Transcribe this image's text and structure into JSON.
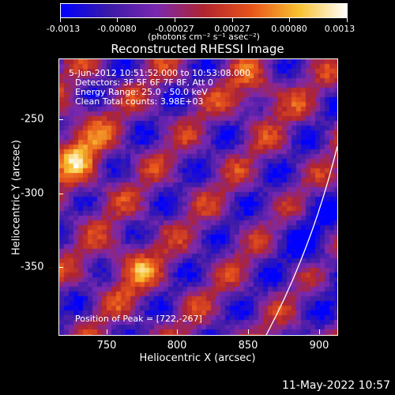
{
  "colorbar": {
    "tick_labels": [
      "-0.0013",
      "-0.00080",
      "-0.00027",
      "0.00027",
      "0.00080",
      "0.0013"
    ],
    "units": "(photons cm⁻² s⁻¹ asec⁻²)",
    "colormap": [
      "#0000ff",
      "#3a1aa8",
      "#7a28b0",
      "#b0242f",
      "#e8541a",
      "#f8c230",
      "#ffffff"
    ]
  },
  "title": "Reconstructed RHESSI Image",
  "info": {
    "line1": "5-Jun-2012 10:51:52.000 to 10:53:08.000",
    "line2": "Detectors: 3F 5F 6F 7F 8F, Att 0",
    "line3": "Energy Range: 25.0 - 50.0 keV",
    "line4": "Clean     Total counts: 3.98E+03",
    "peak": "Position of Peak = [722,-267]"
  },
  "axes": {
    "xlabel": "Heliocentric X (arcsec)",
    "ylabel": "Heliocentric Y (arcsec)",
    "xticks": [
      "750",
      "800",
      "850",
      "900"
    ],
    "yticks": [
      "-250",
      "-300",
      "-350"
    ]
  },
  "timestamp": "11-May-2022 10:57"
}
